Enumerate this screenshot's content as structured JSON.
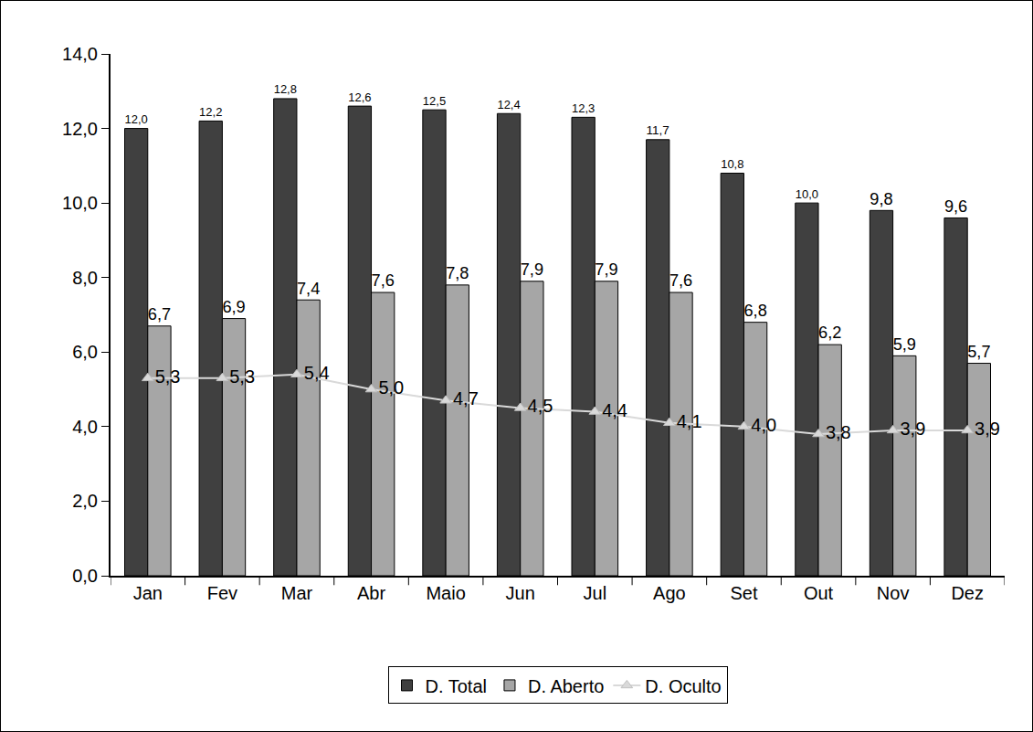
{
  "chart_data": {
    "type": "bar",
    "categories": [
      "Jan",
      "Fev",
      "Mar",
      "Abr",
      "Maio",
      "Jun",
      "Jul",
      "Ago",
      "Set",
      "Out",
      "Nov",
      "Dez"
    ],
    "series": [
      {
        "name": "D. Total",
        "type": "bar",
        "color": "#404040",
        "values": [
          12.0,
          12.2,
          12.8,
          12.6,
          12.5,
          12.4,
          12.3,
          11.7,
          10.8,
          10.0,
          9.8,
          9.6
        ],
        "value_labels": [
          "12,0",
          "12,2",
          "12,8",
          "12,6",
          "12,5",
          "12,4",
          "12,3",
          "11,7",
          "10,8",
          "10,0",
          "9,8",
          "9,6"
        ]
      },
      {
        "name": "D. Aberto",
        "type": "bar",
        "color": "#a6a6a6",
        "values": [
          6.7,
          6.9,
          7.4,
          7.6,
          7.8,
          7.9,
          7.9,
          7.6,
          6.8,
          6.2,
          5.9,
          5.7
        ],
        "value_labels": [
          "6,7",
          "6,9",
          "7,4",
          "7,6",
          "7,8",
          "7,9",
          "7,9",
          "7,6",
          "6,8",
          "6,2",
          "5,9",
          "5,7"
        ]
      },
      {
        "name": "D. Oculto",
        "type": "line",
        "color": "#d9d9d9",
        "marker": "triangle-up",
        "values": [
          5.3,
          5.3,
          5.4,
          5.0,
          4.7,
          4.5,
          4.4,
          4.1,
          4.0,
          3.8,
          3.9,
          3.9
        ],
        "value_labels": [
          "5,3",
          "5,3",
          "5,4",
          "5,0",
          "4,7",
          "4,5",
          "4,4",
          "4,1",
          "4,0",
          "3,8",
          "3,9",
          "3,9"
        ]
      }
    ],
    "ylim": [
      0,
      14
    ],
    "yticks": [
      {
        "value": 0,
        "label": "0,0"
      },
      {
        "value": 2,
        "label": "2,0"
      },
      {
        "value": 4,
        "label": "4,0"
      },
      {
        "value": 6,
        "label": "6,0"
      },
      {
        "value": 8,
        "label": "8,0"
      },
      {
        "value": 10,
        "label": "10,0"
      },
      {
        "value": 12,
        "label": "12,0"
      },
      {
        "value": 14,
        "label": "14,0"
      }
    ],
    "grid": false,
    "legend": "bottom",
    "data_labels": true
  }
}
